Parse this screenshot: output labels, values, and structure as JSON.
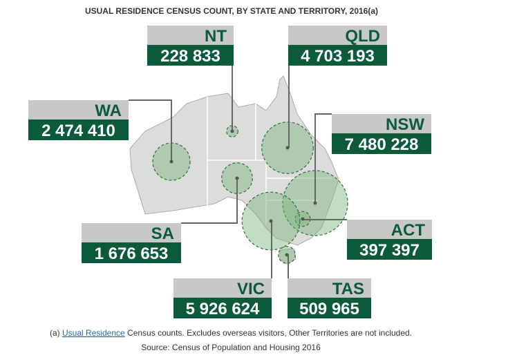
{
  "title": "USUAL RESIDENCE CENSUS COUNT, BY STATE AND TERRITORY, 2016(a)",
  "states": [
    {
      "name": "NT",
      "value": 228833,
      "value_label": "228 833"
    },
    {
      "name": "QLD",
      "value": 4703193,
      "value_label": "4 703 193"
    },
    {
      "name": "WA",
      "value": 2474410,
      "value_label": "2 474 410"
    },
    {
      "name": "NSW",
      "value": 7480228,
      "value_label": "7 480 228"
    },
    {
      "name": "SA",
      "value": 1676653,
      "value_label": "1 676 653"
    },
    {
      "name": "ACT",
      "value": 397397,
      "value_label": "397 397"
    },
    {
      "name": "VIC",
      "value": 5926624,
      "value_label": "5 926 624"
    },
    {
      "name": "TAS",
      "value": 509965,
      "value_label": "509 965"
    }
  ],
  "footnote": {
    "prefix": "(a)",
    "link": "Usual Residence",
    "text": "Census counts. Excludes overseas visitors, Other Territories are not included."
  },
  "source": "Source: Census of Population and Housing 2016"
}
